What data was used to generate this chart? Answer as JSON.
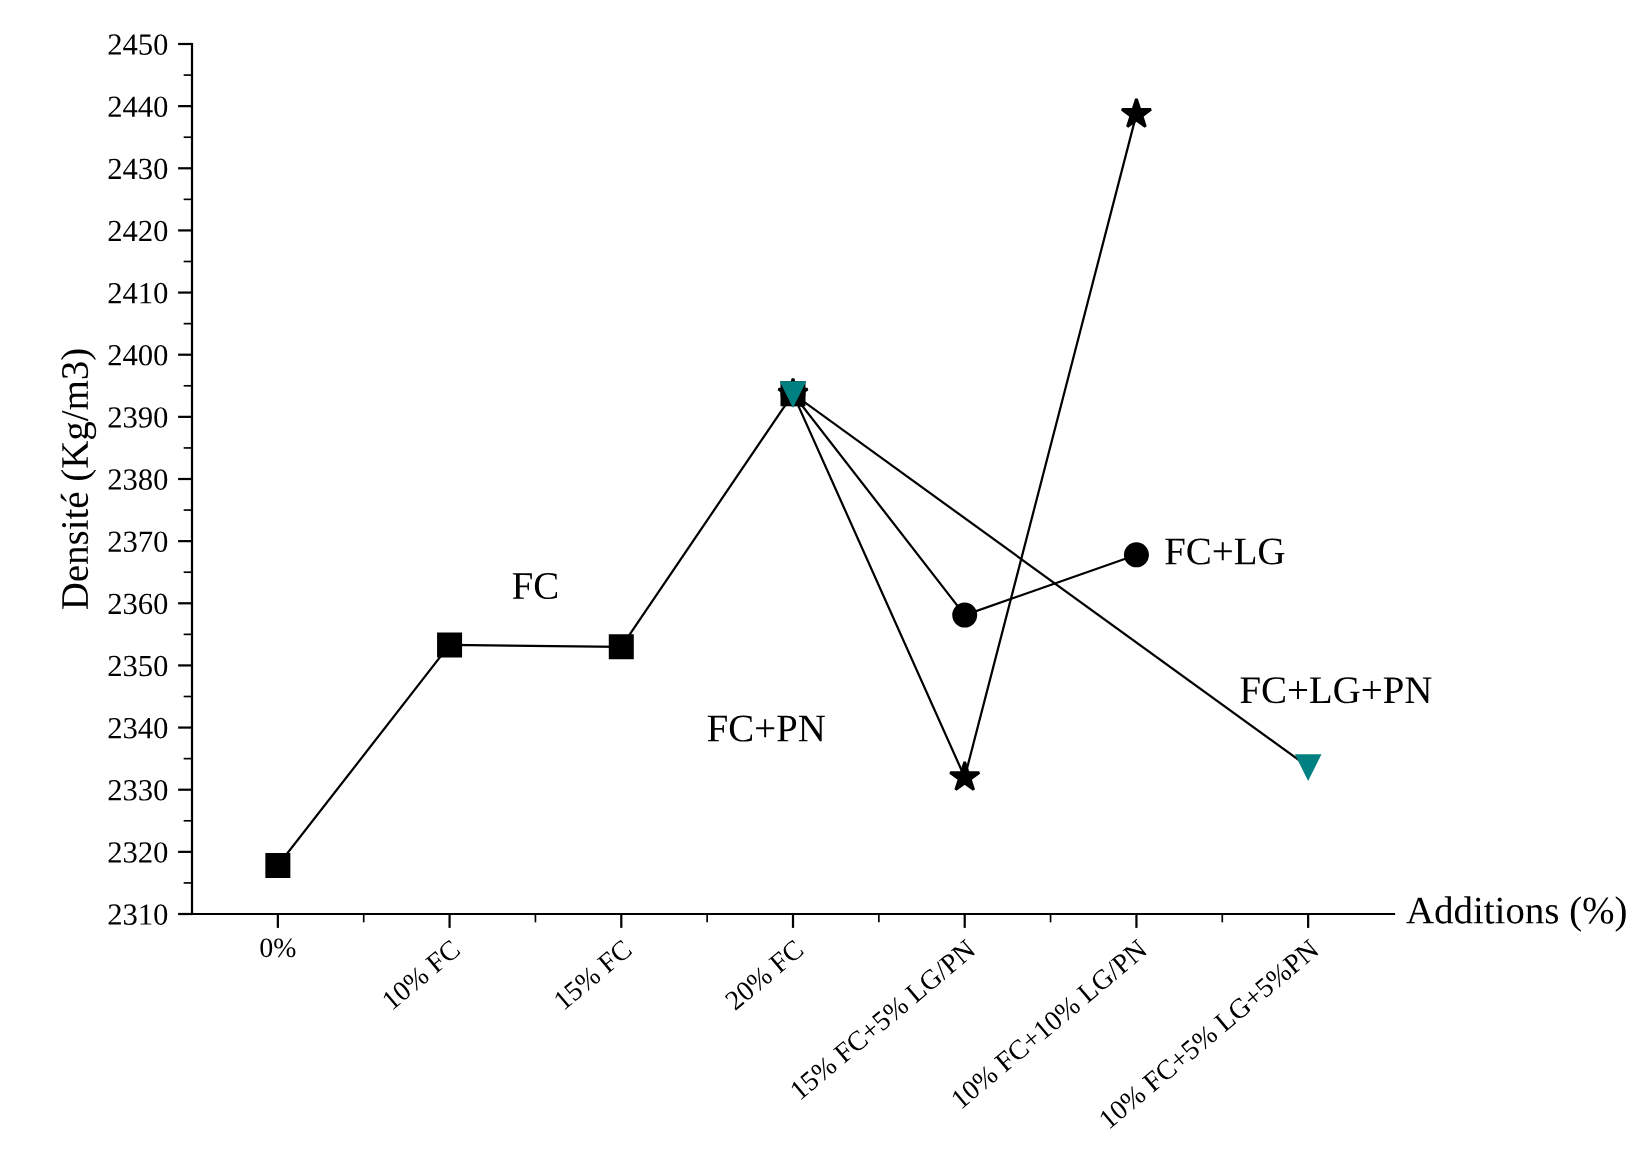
{
  "chart_data": {
    "type": "line",
    "xlabel": "Additions (%)",
    "ylabel": "Densité (Kg/m3)",
    "categories": [
      "0%",
      "10% FC",
      "15% FC",
      "20% FC",
      "15% FC+5% LG/PN",
      "10% FC+10% LG/PN",
      "10% FC+5% LG+5%PN"
    ],
    "ylim": [
      2310,
      2450
    ],
    "yticks": [
      2310,
      2320,
      2330,
      2340,
      2350,
      2360,
      2370,
      2380,
      2390,
      2400,
      2410,
      2420,
      2430,
      2440,
      2450
    ],
    "grid": false,
    "line_style": "solid",
    "series": [
      {
        "name": "FC",
        "color": "#000000",
        "marker": "square",
        "values": [
          2317.8,
          2353.3,
          2353.0,
          2393.7,
          null,
          null,
          null
        ]
      },
      {
        "name": "FC+LG",
        "color": "#000000",
        "marker": "circle",
        "values": [
          null,
          null,
          null,
          2393.7,
          2358.1,
          2367.8,
          null
        ]
      },
      {
        "name": "FC+PN",
        "color": "#000000",
        "marker": "star",
        "values": [
          null,
          null,
          null,
          2393.7,
          2332.0,
          2438.7,
          null
        ]
      },
      {
        "name": "FC+LG+PN",
        "color": "#008080",
        "marker": "triangle",
        "values": [
          null,
          null,
          null,
          2393.7,
          null,
          null,
          2333.7
        ]
      }
    ]
  }
}
